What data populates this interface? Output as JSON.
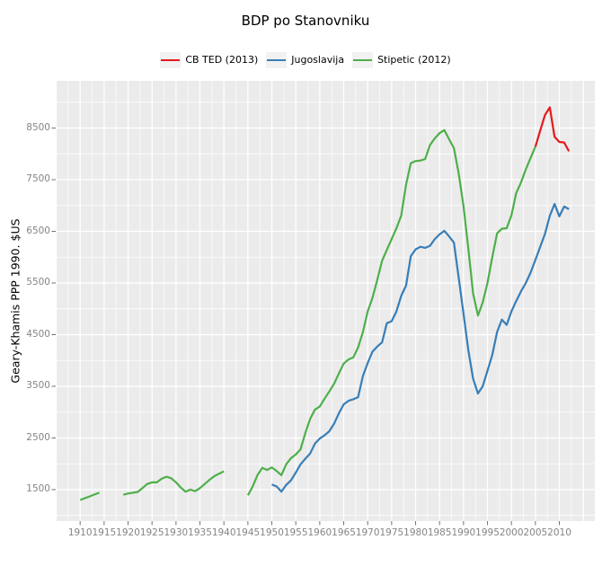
{
  "chart_data": {
    "type": "line",
    "title": "BDP po Stanovniku",
    "xlabel": "",
    "ylabel": "Geary-Khamis PPP 1990. $US",
    "legend_position": "top",
    "grid": {
      "major_color": "#FFFFFF",
      "minor_color": "#FFFFFF",
      "panel_background": "#EBEBEB",
      "grid_on": true
    },
    "x_ticks": [
      1910,
      1915,
      1920,
      1925,
      1930,
      1935,
      1940,
      1945,
      1950,
      1955,
      1960,
      1965,
      1970,
      1975,
      1980,
      1985,
      1990,
      1995,
      2000,
      2005,
      2010
    ],
    "y_ticks": [
      1500,
      2500,
      3500,
      4500,
      5500,
      6500,
      7500,
      8500
    ],
    "x_grid_major": [
      1905,
      1910,
      1915,
      1920,
      1925,
      1930,
      1935,
      1940,
      1945,
      1950,
      1955,
      1960,
      1965,
      1970,
      1975,
      1980,
      1985,
      1990,
      1995,
      2000,
      2005,
      2010,
      2015
    ],
    "x_grid_minor": [
      1907.5,
      1912.5,
      1917.5,
      1922.5,
      1927.5,
      1932.5,
      1937.5,
      1942.5,
      1947.5,
      1952.5,
      1957.5,
      1962.5,
      1967.5,
      1972.5,
      1977.5,
      1982.5,
      1987.5,
      1992.5,
      1997.5,
      2002.5,
      2007.5,
      2012.5,
      2017.5
    ],
    "y_grid_major": [
      1500,
      2500,
      3500,
      4500,
      5500,
      6500,
      7500,
      8500
    ],
    "y_grid_minor": [
      1000,
      2000,
      3000,
      4000,
      5000,
      6000,
      7000,
      8000,
      9000
    ],
    "x_range": [
      1904.9,
      2017.4
    ],
    "y_range": [
      891,
      9413
    ],
    "series": [
      {
        "name": "CB TED (2013)",
        "color": "#E41A1C",
        "segments": [
          [
            [
              2005,
              8140
            ],
            [
              2006,
              8450
            ],
            [
              2007,
              8750
            ],
            [
              2008,
              8900
            ],
            [
              2009,
              8330
            ],
            [
              2010,
              8230
            ],
            [
              2011,
              8220
            ],
            [
              2012,
              8050
            ]
          ]
        ]
      },
      {
        "name": "Jugoslavija",
        "color": "#377EB8",
        "segments": [
          [
            [
              1950,
              1600
            ],
            [
              1951,
              1560
            ],
            [
              1952,
              1460
            ],
            [
              1953,
              1590
            ],
            [
              1954,
              1680
            ],
            [
              1955,
              1830
            ],
            [
              1956,
              1990
            ],
            [
              1957,
              2100
            ],
            [
              1958,
              2200
            ],
            [
              1959,
              2390
            ],
            [
              1960,
              2490
            ],
            [
              1961,
              2550
            ],
            [
              1962,
              2630
            ],
            [
              1963,
              2780
            ],
            [
              1964,
              2980
            ],
            [
              1965,
              3150
            ],
            [
              1966,
              3220
            ],
            [
              1967,
              3250
            ],
            [
              1968,
              3290
            ],
            [
              1969,
              3700
            ],
            [
              1970,
              3950
            ],
            [
              1971,
              4170
            ],
            [
              1972,
              4270
            ],
            [
              1973,
              4350
            ],
            [
              1974,
              4720
            ],
            [
              1975,
              4760
            ],
            [
              1976,
              4950
            ],
            [
              1977,
              5250
            ],
            [
              1978,
              5450
            ],
            [
              1979,
              6020
            ],
            [
              1980,
              6150
            ],
            [
              1981,
              6200
            ],
            [
              1982,
              6180
            ],
            [
              1983,
              6220
            ],
            [
              1984,
              6350
            ],
            [
              1985,
              6440
            ],
            [
              1986,
              6510
            ],
            [
              1987,
              6400
            ],
            [
              1988,
              6280
            ],
            [
              1989,
              5600
            ],
            [
              1990,
              4900
            ],
            [
              1991,
              4200
            ],
            [
              1992,
              3650
            ],
            [
              1993,
              3360
            ],
            [
              1994,
              3500
            ],
            [
              1995,
              3800
            ],
            [
              1996,
              4110
            ],
            [
              1997,
              4550
            ],
            [
              1998,
              4790
            ],
            [
              1999,
              4690
            ],
            [
              2000,
              4950
            ],
            [
              2001,
              5150
            ],
            [
              2002,
              5340
            ],
            [
              2003,
              5500
            ],
            [
              2004,
              5700
            ],
            [
              2005,
              5950
            ],
            [
              2006,
              6200
            ],
            [
              2007,
              6450
            ],
            [
              2008,
              6800
            ],
            [
              2009,
              7030
            ],
            [
              2010,
              6790
            ],
            [
              2011,
              6980
            ],
            [
              2012,
              6930
            ]
          ]
        ]
      },
      {
        "name": "Stipetic (2012)",
        "color": "#4DAF4A",
        "segments": [
          [
            [
              1910,
              1300
            ],
            [
              1911,
              1335
            ],
            [
              1912,
              1370
            ],
            [
              1913,
              1405
            ],
            [
              1914,
              1440
            ]
          ],
          [
            [
              1919,
              1400
            ],
            [
              1920,
              1425
            ],
            [
              1921,
              1440
            ],
            [
              1922,
              1455
            ],
            [
              1923,
              1530
            ],
            [
              1924,
              1610
            ],
            [
              1925,
              1640
            ],
            [
              1926,
              1640
            ],
            [
              1927,
              1710
            ],
            [
              1928,
              1750
            ],
            [
              1929,
              1720
            ],
            [
              1930,
              1640
            ],
            [
              1931,
              1540
            ],
            [
              1932,
              1460
            ],
            [
              1933,
              1500
            ],
            [
              1934,
              1470
            ],
            [
              1935,
              1530
            ],
            [
              1936,
              1610
            ],
            [
              1937,
              1690
            ],
            [
              1938,
              1760
            ],
            [
              1939,
              1810
            ],
            [
              1940,
              1855
            ]
          ],
          [
            [
              1945,
              1390
            ],
            [
              1946,
              1560
            ],
            [
              1947,
              1780
            ],
            [
              1948,
              1920
            ],
            [
              1949,
              1880
            ],
            [
              1950,
              1930
            ],
            [
              1951,
              1860
            ],
            [
              1952,
              1780
            ],
            [
              1953,
              1990
            ],
            [
              1954,
              2110
            ],
            [
              1955,
              2180
            ],
            [
              1956,
              2280
            ],
            [
              1957,
              2600
            ],
            [
              1958,
              2870
            ],
            [
              1959,
              3050
            ],
            [
              1960,
              3110
            ],
            [
              1961,
              3260
            ],
            [
              1962,
              3400
            ],
            [
              1963,
              3550
            ],
            [
              1964,
              3750
            ],
            [
              1965,
              3940
            ],
            [
              1966,
              4020
            ],
            [
              1967,
              4060
            ],
            [
              1968,
              4250
            ],
            [
              1969,
              4550
            ],
            [
              1970,
              4950
            ],
            [
              1971,
              5210
            ],
            [
              1972,
              5560
            ],
            [
              1973,
              5930
            ],
            [
              1974,
              6140
            ],
            [
              1975,
              6350
            ],
            [
              1976,
              6560
            ],
            [
              1977,
              6800
            ],
            [
              1978,
              7400
            ],
            [
              1979,
              7820
            ],
            [
              1980,
              7860
            ],
            [
              1981,
              7870
            ],
            [
              1982,
              7900
            ],
            [
              1983,
              8170
            ],
            [
              1984,
              8300
            ],
            [
              1985,
              8400
            ],
            [
              1986,
              8460
            ],
            [
              1987,
              8280
            ],
            [
              1988,
              8110
            ],
            [
              1989,
              7620
            ],
            [
              1990,
              6980
            ],
            [
              1991,
              6170
            ],
            [
              1992,
              5300
            ],
            [
              1993,
              4870
            ],
            [
              1994,
              5120
            ],
            [
              1995,
              5500
            ],
            [
              1996,
              6000
            ],
            [
              1997,
              6460
            ],
            [
              1998,
              6550
            ],
            [
              1999,
              6560
            ],
            [
              2000,
              6810
            ],
            [
              2001,
              7240
            ],
            [
              2002,
              7450
            ],
            [
              2003,
              7700
            ],
            [
              2004,
              7920
            ],
            [
              2005,
              8140
            ]
          ]
        ]
      }
    ]
  }
}
